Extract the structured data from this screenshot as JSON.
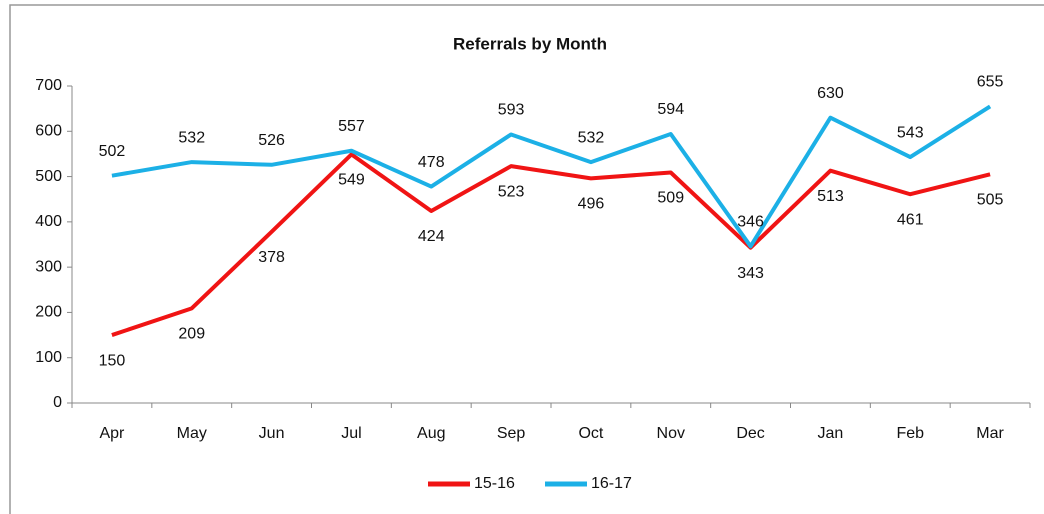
{
  "chart_data": {
    "type": "line",
    "title": "Referrals by Month",
    "categories": [
      "Apr",
      "May",
      "Jun",
      "Jul",
      "Aug",
      "Sep",
      "Oct",
      "Nov",
      "Dec",
      "Jan",
      "Feb",
      "Mar"
    ],
    "series": [
      {
        "name": "15-16",
        "color": "#f01414",
        "values": [
          150,
          209,
          378,
          549,
          424,
          523,
          496,
          509,
          343,
          513,
          461,
          505
        ]
      },
      {
        "name": "16-17",
        "color": "#1cb0e6",
        "values": [
          502,
          532,
          526,
          557,
          478,
          593,
          532,
          594,
          346,
          630,
          543,
          655
        ]
      }
    ],
    "ylim": [
      0,
      700
    ],
    "yticks": [
      0,
      100,
      200,
      300,
      400,
      500,
      600,
      700
    ],
    "grid": false,
    "legend": "bottom"
  }
}
